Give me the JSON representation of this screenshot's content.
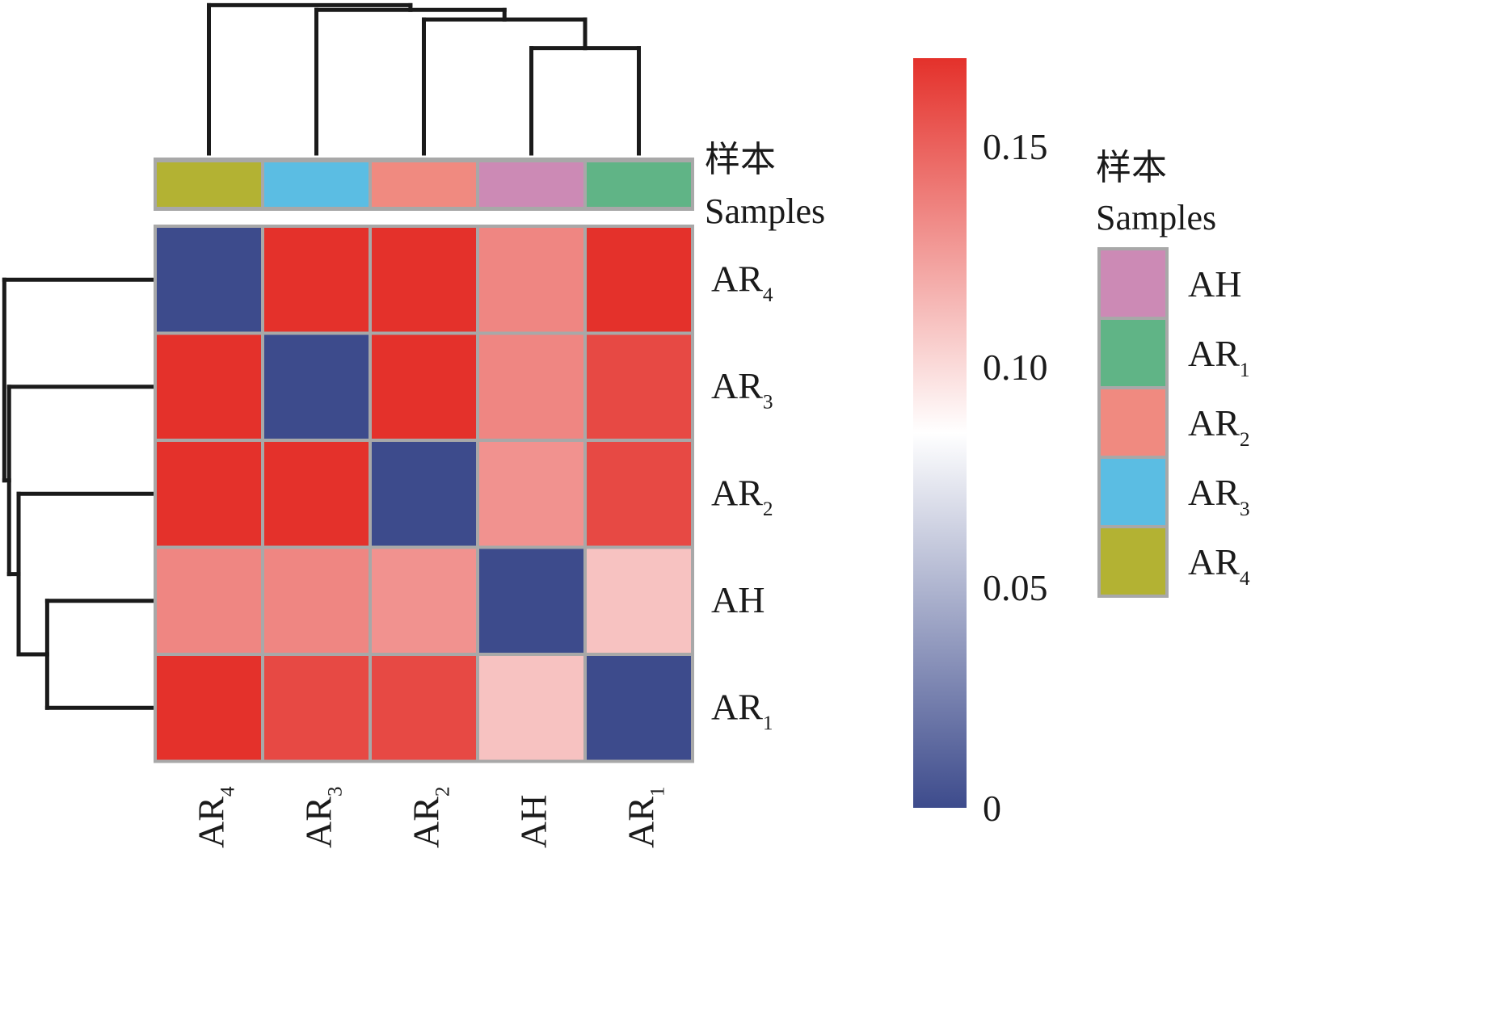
{
  "chart_data": {
    "type": "heatmap",
    "title": "",
    "samples": [
      "AR4",
      "AR3",
      "AR2",
      "AH",
      "AR1"
    ],
    "row_labels": [
      {
        "base": "AR",
        "sub": "4"
      },
      {
        "base": "AR",
        "sub": "3"
      },
      {
        "base": "AR",
        "sub": "2"
      },
      {
        "base": "AH",
        "sub": ""
      },
      {
        "base": "AR",
        "sub": "1"
      }
    ],
    "col_labels": [
      {
        "base": "AR",
        "sub": "4"
      },
      {
        "base": "AR",
        "sub": "3"
      },
      {
        "base": "AR",
        "sub": "2"
      },
      {
        "base": "AH",
        "sub": ""
      },
      {
        "base": "AR",
        "sub": "1"
      }
    ],
    "values": [
      [
        0.0,
        0.17,
        0.17,
        0.135,
        0.17
      ],
      [
        0.17,
        0.0,
        0.17,
        0.135,
        0.16
      ],
      [
        0.17,
        0.17,
        0.0,
        0.13,
        0.16
      ],
      [
        0.135,
        0.135,
        0.13,
        0.0,
        0.11
      ],
      [
        0.17,
        0.16,
        0.16,
        0.11,
        0.0
      ]
    ],
    "color_scale": {
      "min": 0,
      "max": 0.17,
      "mid": 0.085,
      "low_color": "#3d4b8c",
      "mid_color": "#ffffff",
      "high_color": "#e4312b",
      "ticks": [
        0,
        0.05,
        0.1,
        0.15
      ],
      "tick_labels": [
        "0",
        "0.05",
        "0.10",
        "0.15"
      ]
    },
    "annotation": {
      "title_cn": "样本",
      "title_en": "Samples",
      "colors": {
        "AH": "#cc8ab5",
        "AR1": "#60b486",
        "AR2": "#f08a80",
        "AR3": "#5bbde3",
        "AR4": "#b3b233"
      },
      "legend_order": [
        {
          "key": "AH",
          "base": "AH",
          "sub": ""
        },
        {
          "key": "AR1",
          "base": "AR",
          "sub": "1"
        },
        {
          "key": "AR2",
          "base": "AR",
          "sub": "2"
        },
        {
          "key": "AR3",
          "base": "AR",
          "sub": "3"
        },
        {
          "key": "AR4",
          "base": "AR",
          "sub": "4"
        }
      ]
    },
    "dendrogram": {
      "merges": [
        {
          "left": "AH",
          "right": "AR1",
          "height": 0.11
        },
        {
          "left": "AR2",
          "right": "AH+AR1",
          "height": 0.14
        },
        {
          "left": "AR3",
          "right": "AR2+AH+AR1",
          "height": 0.15
        },
        {
          "left": "AR4",
          "right": "AR3+AR2+AH+AR1",
          "height": 0.155
        }
      ]
    },
    "legend_position": "right"
  }
}
